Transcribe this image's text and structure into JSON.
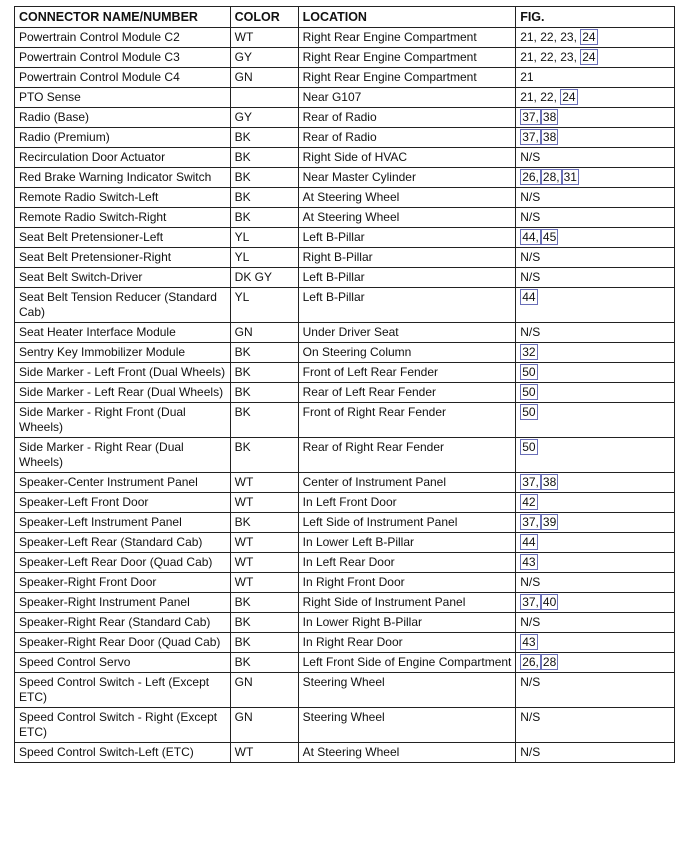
{
  "headers": [
    "CONNECTOR NAME/NUMBER",
    "COLOR",
    "LOCATION",
    "FIG."
  ],
  "link_color": "#6a6fb8",
  "rows": [
    {
      "name": "Powertrain Control Module C2",
      "color": "WT",
      "location": "Right Rear Engine Compartment",
      "fig": [
        {
          "t": "21, 22, 23, "
        },
        {
          "t": "24",
          "link": true
        }
      ]
    },
    {
      "name": "Powertrain Control Module C3",
      "color": "GY",
      "location": "Right Rear Engine Compartment",
      "fig": [
        {
          "t": "21, 22, 23, "
        },
        {
          "t": "24",
          "link": true
        }
      ]
    },
    {
      "name": "Powertrain Control Module C4",
      "color": "GN",
      "location": "Right Rear Engine Compartment",
      "fig": [
        {
          "t": "21"
        }
      ]
    },
    {
      "name": "PTO Sense",
      "color": "",
      "location": "Near G107",
      "fig": [
        {
          "t": "21, 22, "
        },
        {
          "t": "24",
          "link": true
        }
      ]
    },
    {
      "name": "Radio (Base)",
      "color": "GY",
      "location": "Rear of Radio",
      "fig": [
        {
          "t": "37,",
          "link": true
        },
        {
          "t": "38",
          "link": true
        }
      ]
    },
    {
      "name": "Radio (Premium)",
      "color": "BK",
      "location": "Rear of Radio",
      "fig": [
        {
          "t": "37,",
          "link": true
        },
        {
          "t": "38",
          "link": true
        }
      ]
    },
    {
      "name": "Recirculation Door Actuator",
      "color": "BK",
      "location": "Right Side of HVAC",
      "fig": [
        {
          "t": "N/S"
        }
      ]
    },
    {
      "name": "Red Brake Warning Indicator Switch",
      "color": "BK",
      "location": "Near Master Cylinder",
      "fig": [
        {
          "t": "26,",
          "link": true
        },
        {
          "t": "28,",
          "link": true
        },
        {
          "t": "31",
          "link": true
        }
      ]
    },
    {
      "name": "Remote Radio Switch-Left",
      "color": "BK",
      "location": "At Steering Wheel",
      "fig": [
        {
          "t": "N/S"
        }
      ]
    },
    {
      "name": "Remote Radio Switch-Right",
      "color": "BK",
      "location": "At Steering Wheel",
      "fig": [
        {
          "t": "N/S"
        }
      ]
    },
    {
      "name": "Seat Belt Pretensioner-Left",
      "color": "YL",
      "location": "Left B-Pillar",
      "fig": [
        {
          "t": "44,",
          "link": true
        },
        {
          "t": "45",
          "link": true
        }
      ]
    },
    {
      "name": "Seat Belt Pretensioner-Right",
      "color": "YL",
      "location": "Right B-Pillar",
      "fig": [
        {
          "t": "N/S"
        }
      ]
    },
    {
      "name": "Seat Belt Switch-Driver",
      "color": "DK GY",
      "location": "Left B-Pillar",
      "fig": [
        {
          "t": "N/S"
        }
      ]
    },
    {
      "name": "Seat Belt Tension Reducer (Standard Cab)",
      "color": "YL",
      "location": "Left B-Pillar",
      "fig": [
        {
          "t": "44",
          "link": true
        }
      ]
    },
    {
      "name": "Seat Heater Interface Module",
      "color": "GN",
      "location": "Under Driver Seat",
      "fig": [
        {
          "t": "N/S"
        }
      ]
    },
    {
      "name": "Sentry Key Immobilizer Module",
      "color": "BK",
      "location": "On Steering Column",
      "fig": [
        {
          "t": "32",
          "link": true
        }
      ]
    },
    {
      "name": "Side Marker - Left Front (Dual Wheels)",
      "color": "BK",
      "location": "Front of Left Rear Fender",
      "fig": [
        {
          "t": "50",
          "link": true
        }
      ]
    },
    {
      "name": "Side Marker - Left Rear (Dual Wheels)",
      "color": "BK",
      "location": "Rear of Left Rear Fender",
      "fig": [
        {
          "t": "50",
          "link": true
        }
      ]
    },
    {
      "name": "Side Marker - Right Front (Dual Wheels)",
      "color": "BK",
      "location": "Front of Right Rear Fender",
      "fig": [
        {
          "t": "50",
          "link": true
        }
      ]
    },
    {
      "name": "Side Marker - Right Rear (Dual Wheels)",
      "color": "BK",
      "location": "Rear of Right Rear Fender",
      "fig": [
        {
          "t": "50",
          "link": true
        }
      ]
    },
    {
      "name": "Speaker-Center Instrument Panel",
      "color": "WT",
      "location": "Center of Instrument Panel",
      "fig": [
        {
          "t": "37,",
          "link": true
        },
        {
          "t": "38",
          "link": true
        }
      ]
    },
    {
      "name": "Speaker-Left Front Door",
      "color": "WT",
      "location": "In Left Front Door",
      "fig": [
        {
          "t": "42",
          "link": true
        }
      ]
    },
    {
      "name": "Speaker-Left Instrument Panel",
      "color": "BK",
      "location": "Left Side of Instrument Panel",
      "fig": [
        {
          "t": "37,",
          "link": true
        },
        {
          "t": "39",
          "link": true
        }
      ]
    },
    {
      "name": "Speaker-Left Rear (Standard Cab)",
      "color": "WT",
      "location": "In Lower Left B-Pillar",
      "fig": [
        {
          "t": "44",
          "link": true
        }
      ]
    },
    {
      "name": "Speaker-Left Rear Door (Quad Cab)",
      "color": "WT",
      "location": "In Left Rear Door",
      "fig": [
        {
          "t": "43",
          "link": true
        }
      ]
    },
    {
      "name": "Speaker-Right Front Door",
      "color": "WT",
      "location": "In Right Front Door",
      "fig": [
        {
          "t": "N/S"
        }
      ]
    },
    {
      "name": "Speaker-Right Instrument Panel",
      "color": "BK",
      "location": "Right Side of Instrument Panel",
      "fig": [
        {
          "t": "37,",
          "link": true
        },
        {
          "t": "40",
          "link": true
        }
      ]
    },
    {
      "name": "Speaker-Right Rear (Standard Cab)",
      "color": "BK",
      "location": "In Lower Right B-Pillar",
      "fig": [
        {
          "t": "N/S"
        }
      ]
    },
    {
      "name": "Speaker-Right Rear Door (Quad Cab)",
      "color": "BK",
      "location": "In Right Rear Door",
      "fig": [
        {
          "t": "43",
          "link": true
        }
      ]
    },
    {
      "name": "Speed Control Servo",
      "color": "BK",
      "location": "Left Front Side of Engine Compartment",
      "fig": [
        {
          "t": "26,",
          "link": true
        },
        {
          "t": "28",
          "link": true
        }
      ]
    },
    {
      "name": "Speed Control Switch - Left (Except ETC)",
      "color": "GN",
      "location": "Steering Wheel",
      "fig": [
        {
          "t": "N/S"
        }
      ]
    },
    {
      "name": "Speed Control Switch - Right (Except ETC)",
      "color": "GN",
      "location": "Steering Wheel",
      "fig": [
        {
          "t": "N/S"
        }
      ]
    },
    {
      "name": "Speed Control Switch-Left (ETC)",
      "color": "WT",
      "location": "At Steering Wheel",
      "fig": [
        {
          "t": "N/S"
        }
      ]
    }
  ]
}
